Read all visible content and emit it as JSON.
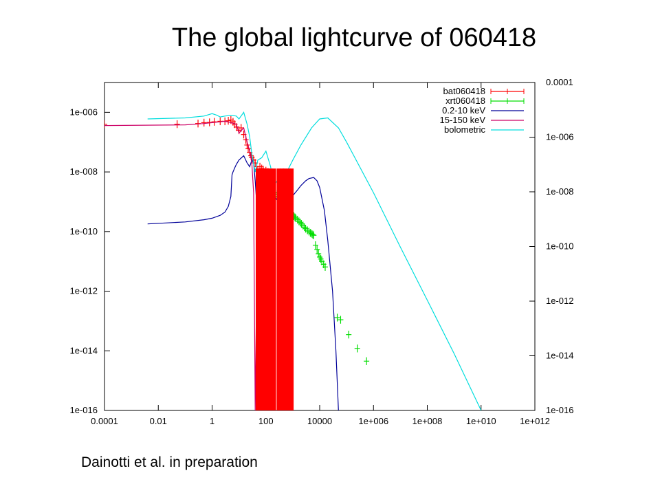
{
  "slide": {
    "title": "The global lightcurve of 060418",
    "caption": "Dainotti et al. in preparation"
  },
  "chart_data": {
    "type": "line",
    "title": "",
    "xlabel": "",
    "ylabel": "",
    "x_scale": "log",
    "y_scale": "log",
    "xlim": [
      0.0001,
      1000000000000.0
    ],
    "ylim": [
      1e-16,
      1e-05
    ],
    "y2lim": [
      1e-16,
      0.0001
    ],
    "x_ticks": [
      "0.0001",
      "0.01",
      "1",
      "100",
      "10000",
      "1e+006",
      "1e+008",
      "1e+010",
      "1e+012"
    ],
    "x_tick_values": [
      0.0001,
      0.01,
      1,
      100,
      10000.0,
      1000000.0,
      100000000.0,
      10000000000.0,
      1000000000000.0
    ],
    "y_ticks": [
      "1e-016",
      "1e-014",
      "1e-012",
      "1e-010",
      "1e-008",
      "1e-006"
    ],
    "y_tick_values": [
      1e-16,
      1e-14,
      1e-12,
      1e-10,
      1e-08,
      1e-06
    ],
    "y2_ticks": [
      "1e-016",
      "1e-014",
      "1e-012",
      "1e-010",
      "1e-008",
      "1e-006",
      "0.0001"
    ],
    "y2_tick_values": [
      1e-16,
      1e-14,
      1e-12,
      1e-10,
      1e-08,
      1e-06,
      0.0001
    ],
    "grid": false,
    "legend_position": "top-right",
    "series": [
      {
        "name": "bat060418",
        "color": "#ff0000",
        "style": "errorbars",
        "axis": "left",
        "x": [
          0.0001,
          0.05,
          0.3,
          0.5,
          0.8,
          1.2,
          2,
          3,
          4,
          5,
          6,
          7,
          8,
          10,
          12,
          15,
          18,
          20,
          22,
          25,
          28,
          30,
          35,
          40,
          45,
          50,
          60,
          70,
          80,
          100,
          120,
          150
        ],
        "y": [
          4e-07,
          4e-07,
          4.2e-07,
          4.5e-07,
          4.6e-07,
          4.8e-07,
          5e-07,
          5e-07,
          5.2e-07,
          5.5e-07,
          4.8e-07,
          4e-07,
          3.2e-07,
          2.5e-07,
          3e-07,
          1.8e-07,
          1.2e-07,
          8e-08,
          6e-08,
          4.5e-08,
          3.5e-08,
          3e-08,
          2.5e-08,
          2e-08,
          1.5e-08,
          1.2e-08,
          1.5e-08,
          1.3e-08,
          1.2e-08,
          1.1e-08,
          1e-08,
          9e-09
        ]
      },
      {
        "name": "xrt060418",
        "color": "#00dd00",
        "style": "errorbars",
        "axis": "left",
        "x": [
          120,
          150,
          180,
          220,
          260,
          300,
          350,
          400,
          450,
          500,
          550,
          600,
          650,
          700,
          800,
          900,
          1000,
          1100,
          1200,
          1300,
          1500,
          1700,
          1900,
          2100,
          2400,
          2700,
          3000,
          3500,
          4000,
          4500,
          5000,
          5500,
          6000,
          7000,
          8000,
          9000,
          10000,
          11000,
          12000,
          14000,
          16000,
          45000,
          60000,
          120000,
          250000,
          550000
        ],
        "y": [
          4e-09,
          3e-09,
          2.5e-09,
          2e-09,
          1.8e-09,
          1.5e-09,
          1.3e-09,
          1.1e-09,
          9e-10,
          8e-10,
          7e-10,
          6.5e-10,
          6e-10,
          5.5e-10,
          4.5e-10,
          4e-10,
          3.6e-10,
          3.3e-10,
          3e-10,
          2.8e-10,
          2.5e-10,
          2.2e-10,
          2e-10,
          1.8e-10,
          1.6e-10,
          1.4e-10,
          1.25e-10,
          1.1e-10,
          1e-10,
          9e-11,
          8.5e-11,
          8e-11,
          7.5e-11,
          3.5e-11,
          2.5e-11,
          1.8e-11,
          1.4e-11,
          1.2e-11,
          1e-11,
          8e-12,
          6.5e-12,
          1.3e-13,
          1.1e-13,
          3.5e-14,
          1.2e-14,
          4.5e-15
        ]
      },
      {
        "name": "0.2-10 keV",
        "color": "#000099",
        "style": "line",
        "axis": "left",
        "x": [
          0.004,
          0.1,
          0.5,
          1,
          2,
          3,
          4,
          5,
          5.5,
          6,
          7,
          8,
          10,
          15,
          20,
          25,
          30,
          35,
          40,
          45,
          50,
          60,
          80,
          100,
          120,
          150,
          200,
          250,
          300,
          400,
          600,
          800,
          1000,
          1500,
          2000,
          3000,
          4000,
          6000,
          8000,
          10000,
          15000,
          20000,
          30000,
          40000,
          50000
        ],
        "y": [
          1.8e-10,
          2.1e-10,
          2.5e-10,
          2.8e-10,
          3.5e-10,
          4.5e-10,
          7e-10,
          1.5e-09,
          8e-09,
          1e-08,
          1.4e-08,
          1.8e-08,
          2.5e-08,
          3.5e-08,
          2e-08,
          1.5e-08,
          2.5e-08,
          2e-08,
          5e-09,
          1e-09,
          8e-11,
          4e-09,
          3e-09,
          5e-09,
          3.5e-09,
          2.5e-09,
          1.8e-09,
          1.2e-09,
          1e-09,
          8e-10,
          9e-10,
          1.2e-09,
          1.6e-09,
          2.5e-09,
          3.5e-09,
          5e-09,
          6e-09,
          6.5e-09,
          5e-09,
          3e-09,
          5e-10,
          5e-11,
          1e-12,
          1e-14,
          1e-16
        ]
      },
      {
        "name": "15-150 keV",
        "color": "#cc0066",
        "style": "line",
        "axis": "left",
        "x": [
          0.0001,
          0.1,
          0.5,
          1,
          2,
          3,
          5,
          8,
          10,
          15,
          20,
          25,
          30,
          35,
          40,
          45,
          50,
          60,
          80,
          100,
          150,
          200
        ],
        "y": [
          3.6e-07,
          3.8e-07,
          4.2e-07,
          4.5e-07,
          4.8e-07,
          5e-07,
          4.5e-07,
          4e-07,
          2e-07,
          3e-07,
          1e-07,
          5e-08,
          2e-08,
          2e-09,
          1e-16,
          1e-12,
          5e-10,
          5e-09,
          2e-09,
          1e-10,
          1e-12,
          1e-16
        ]
      },
      {
        "name": "bolometric",
        "color": "#00dddd",
        "style": "line",
        "axis": "left",
        "x": [
          0.004,
          0.1,
          0.5,
          1,
          1.5,
          2,
          3,
          5,
          8,
          10,
          15,
          20,
          25,
          30,
          40,
          50,
          70,
          100,
          150,
          200,
          300,
          400,
          600,
          1000,
          2000,
          5000,
          10000,
          20000,
          50000,
          100000,
          1000000,
          10000000,
          100000000,
          1000000000,
          10000000000
        ],
        "y": [
          6e-07,
          6.5e-07,
          7.5e-07,
          9e-07,
          8e-07,
          7e-07,
          7.5e-07,
          8e-07,
          7.5e-07,
          6e-07,
          1e-06,
          4e-07,
          1.5e-07,
          4e-08,
          1e-08,
          2.5e-08,
          3e-08,
          5e-08,
          1.5e-08,
          3.5e-09,
          6e-09,
          6e-09,
          1e-08,
          2.5e-08,
          8e-08,
          3e-07,
          6e-07,
          6.5e-07,
          3e-07,
          1e-07,
          2e-09,
          3e-11,
          5e-13,
          8e-15,
          1e-16
        ]
      }
    ]
  }
}
